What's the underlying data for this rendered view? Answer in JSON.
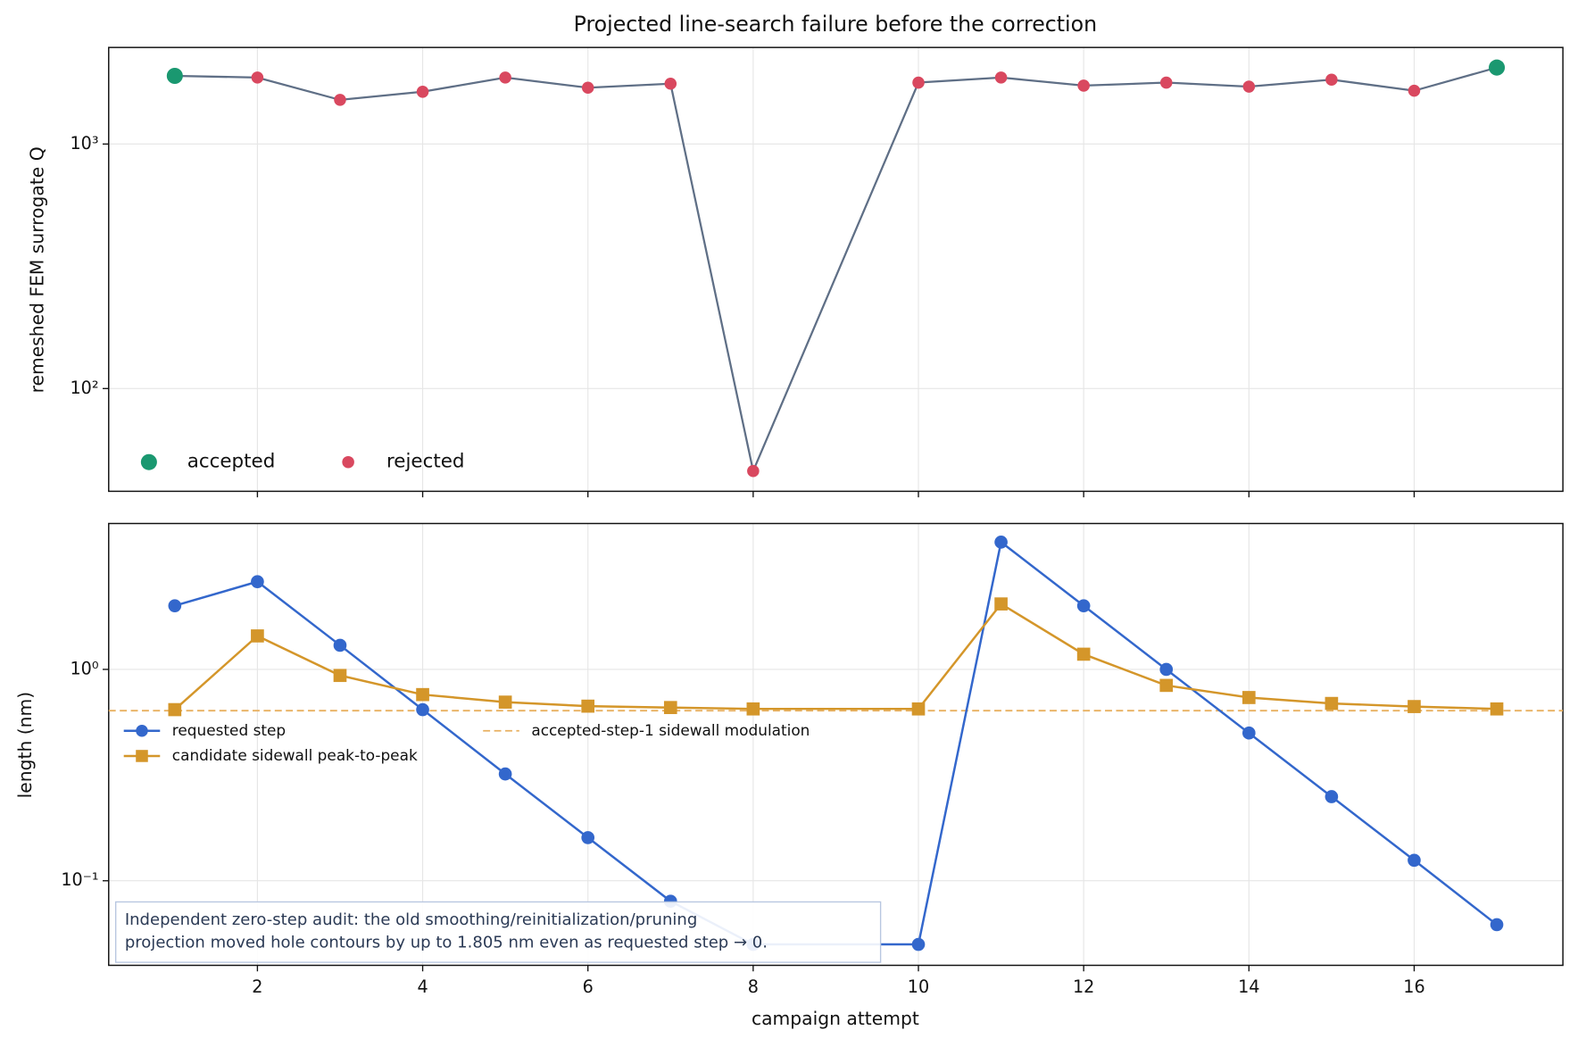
{
  "chart_data": [
    {
      "type": "line",
      "title": "Projected line-search failure before the correction",
      "ylabel": "remeshed FEM surrogate Q",
      "log_y": true,
      "grid": true,
      "x": [
        1,
        2,
        3,
        4,
        5,
        6,
        7,
        8,
        10,
        11,
        12,
        13,
        14,
        15,
        16,
        17
      ],
      "values": [
        1900,
        1870,
        1516,
        1636,
        1870,
        1700,
        1765,
        46,
        1783,
        1870,
        1733,
        1783,
        1717,
        1833,
        1652,
        2055
      ],
      "line_color": "#5f6f86",
      "groups": [
        {
          "name": "accepted",
          "color": "#1a9870",
          "points": [
            0,
            15
          ]
        },
        {
          "name": "rejected",
          "color": "#d9485f",
          "points": [
            1,
            2,
            3,
            4,
            5,
            6,
            7,
            8,
            9,
            10,
            11,
            12,
            13,
            14
          ]
        }
      ],
      "ylim": [
        38,
        2483
      ],
      "yticks": [
        {
          "value": 100,
          "label": "10²"
        },
        {
          "value": 1000,
          "label": "10³"
        }
      ],
      "legend": "lower left"
    },
    {
      "type": "line",
      "xlabel": "campaign attempt",
      "ylabel": "length (nm)",
      "log_y": true,
      "grid": true,
      "x": [
        1,
        2,
        3,
        4,
        5,
        6,
        7,
        8,
        10,
        11,
        12,
        13,
        14,
        15,
        16,
        17
      ],
      "series": [
        {
          "name": "requested step",
          "color": "#3367cc",
          "marker": "circle",
          "values": [
            2.0,
            2.6,
            1.3,
            0.645,
            0.32,
            0.16,
            0.08,
            0.05,
            0.05,
            4.0,
            2.0,
            1.0,
            0.5,
            0.25,
            0.125,
            0.062
          ]
        },
        {
          "name": "candidate sidewall peak-to-peak",
          "color": "#d4962a",
          "marker": "square",
          "values": [
            0.645,
            1.44,
            0.936,
            0.76,
            0.7,
            0.67,
            0.66,
            0.65,
            0.65,
            2.04,
            1.18,
            0.84,
            0.736,
            0.69,
            0.667,
            0.65
          ]
        }
      ],
      "hline": {
        "name": "accepted-step-1 sidewall modulation",
        "value": 0.638,
        "color": "#e8b060"
      },
      "annotation": [
        "Independent zero-step audit: the old smoothing/reinitialization/pruning",
        "projection moved hole contours by up to 1.805 nm even as requested step → 0."
      ],
      "xlim": [
        0.2,
        17.8
      ],
      "xticks": [
        2,
        4,
        6,
        8,
        10,
        12,
        14,
        16
      ],
      "ylim": [
        0.0398,
        4.9
      ],
      "yticks": [
        {
          "value": 0.1,
          "label": "10⁻¹"
        },
        {
          "value": 1,
          "label": "10⁰"
        }
      ],
      "legend": "center left"
    }
  ]
}
